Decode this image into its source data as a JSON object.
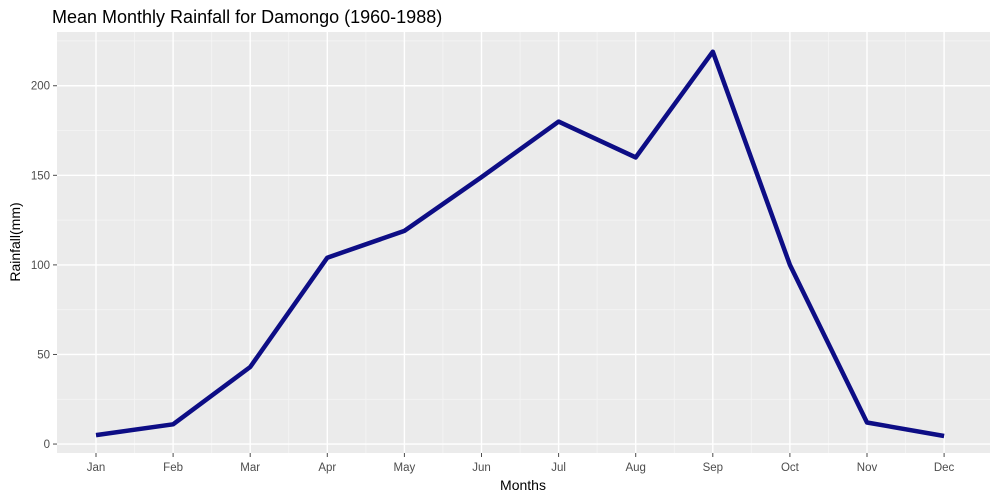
{
  "chart_data": {
    "type": "line",
    "title": "Mean Monthly Rainfall for Damongo (1960-1988)",
    "xlabel": "Months",
    "ylabel": "Rainfall(mm)",
    "categories": [
      "Jan",
      "Feb",
      "Mar",
      "Apr",
      "May",
      "Jun",
      "Jul",
      "Aug",
      "Sep",
      "Oct",
      "Nov",
      "Dec"
    ],
    "series": [
      {
        "values": [
          5,
          11,
          43,
          104,
          119,
          149,
          180,
          160,
          219,
          100,
          12,
          4.5
        ]
      }
    ],
    "yticks": [
      0,
      50,
      100,
      150,
      200
    ],
    "ylim": [
      -5,
      230
    ],
    "grid": true,
    "legend": "none",
    "colors": {
      "line": "#0d0d85",
      "panel": "#ebebeb",
      "grid_major": "#ffffff",
      "grid_minor": "#f5f5f5",
      "tick": "#4d4d4d"
    }
  }
}
